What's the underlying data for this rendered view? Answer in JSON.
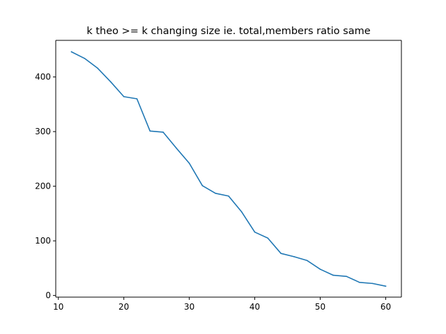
{
  "chart_data": {
    "type": "line",
    "title": "k theo >= k changing size ie. total,members ratio same",
    "xlabel": "",
    "ylabel": "",
    "xlim": [
      9.6,
      62.4
    ],
    "ylim": [
      -3,
      467
    ],
    "xticks": [
      10,
      20,
      30,
      40,
      50,
      60
    ],
    "xtick_labels": [
      "10",
      "20",
      "30",
      "40",
      "50",
      "60"
    ],
    "yticks": [
      0,
      100,
      200,
      300,
      400
    ],
    "ytick_labels": [
      "0",
      "100",
      "200",
      "300",
      "400"
    ],
    "grid": false,
    "series": [
      {
        "color": "#1f77b4",
        "x": [
          12,
          14,
          16,
          18,
          20,
          22,
          24,
          26,
          28,
          30,
          32,
          34,
          36,
          38,
          40,
          42,
          44,
          46,
          48,
          50,
          52,
          54,
          56,
          58,
          60
        ],
        "y": [
          446,
          434,
          416,
          391,
          364,
          360,
          301,
          299,
          270,
          242,
          201,
          187,
          182,
          153,
          116,
          105,
          77,
          71,
          64,
          48,
          37,
          35,
          24,
          22,
          17
        ]
      }
    ]
  }
}
